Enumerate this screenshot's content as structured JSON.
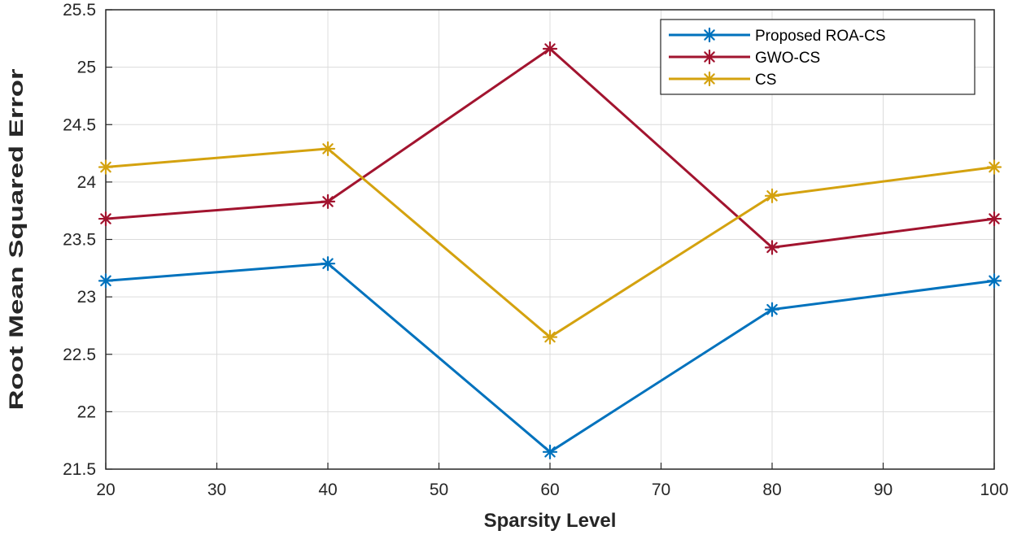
{
  "chart_data": {
    "type": "line",
    "title": "",
    "xlabel": "Sparsity Level",
    "ylabel": "Root Mean Squared Error",
    "xlim": [
      20,
      100
    ],
    "ylim": [
      21.5,
      25.5
    ],
    "xticks": [
      "20",
      "30",
      "40",
      "50",
      "60",
      "70",
      "80",
      "90",
      "100"
    ],
    "yticks": [
      "21.5",
      "22",
      "22.5",
      "23",
      "23.5",
      "24",
      "24.5",
      "25",
      "25.5"
    ],
    "grid": true,
    "legend_position": "top-right",
    "x": [
      20,
      40,
      60,
      80,
      100
    ],
    "series": [
      {
        "name": "Proposed ROA-CS",
        "color": "#0072BD",
        "values": [
          23.14,
          23.29,
          21.65,
          22.89,
          23.14
        ]
      },
      {
        "name": "GWO-CS",
        "color": "#A2142F",
        "values": [
          23.68,
          23.83,
          25.16,
          23.43,
          23.68
        ]
      },
      {
        "name": "CS",
        "color": "#D4A20F",
        "values": [
          24.13,
          24.29,
          22.65,
          23.88,
          24.13
        ]
      }
    ]
  }
}
